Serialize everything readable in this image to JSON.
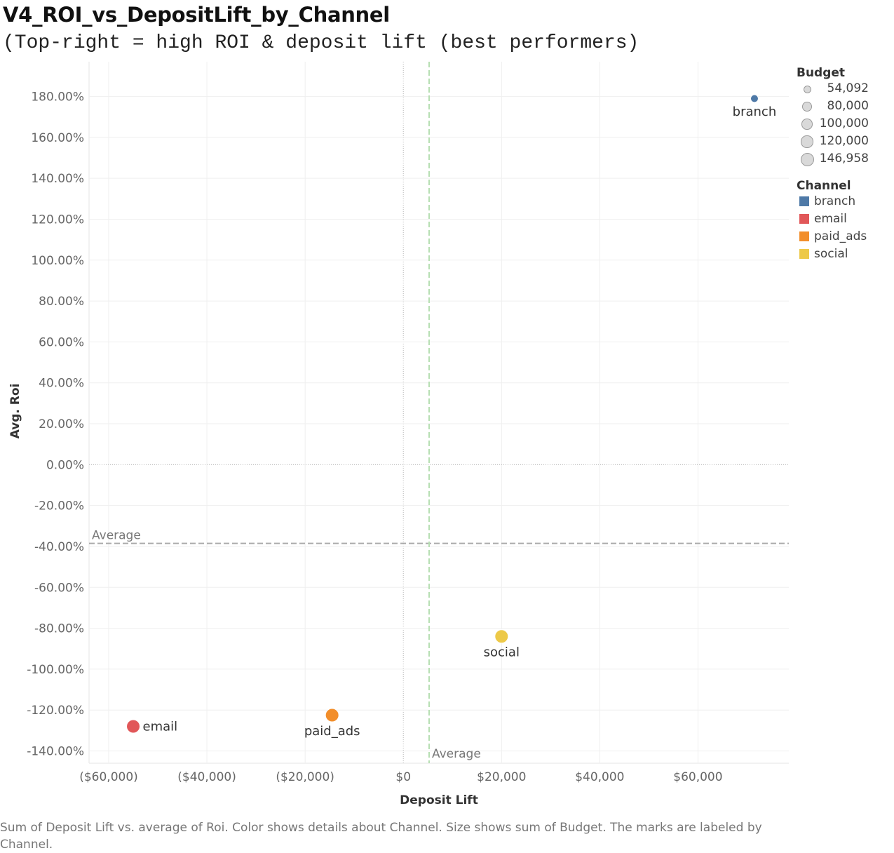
{
  "title": "V4_ROI_vs_DepositLift_by_Channel",
  "subtitle": "(Top-right = high ROI & deposit lift (best performers)",
  "caption": "Sum of Deposit Lift vs. average of Roi.  Color shows details about Channel.  Size shows sum of Budget.  The marks are labeled by Channel.",
  "chart_data": {
    "type": "scatter",
    "xlabel": "Deposit Lift",
    "ylabel": "Avg. Roi",
    "xlim": [
      -64000,
      78500
    ],
    "ylim": [
      -146,
      197
    ],
    "x_ticks": [
      -60000,
      -40000,
      -20000,
      0,
      20000,
      40000,
      60000
    ],
    "x_tick_labels": [
      "($60,000)",
      "($40,000)",
      "($20,000)",
      "$0",
      "$20,000",
      "$40,000",
      "$60,000"
    ],
    "y_ticks": [
      180,
      160,
      140,
      120,
      100,
      80,
      60,
      40,
      20,
      0,
      -20,
      -40,
      -60,
      -80,
      -100,
      -120,
      -140
    ],
    "y_tick_labels": [
      "180.00%",
      "160.00%",
      "140.00%",
      "120.00%",
      "100.00%",
      "80.00%",
      "60.00%",
      "40.00%",
      "20.00%",
      "0.00%",
      "-20.00%",
      "-40.00%",
      "-60.00%",
      "-80.00%",
      "-100.00%",
      "-120.00%",
      "-140.00%"
    ],
    "grid": true,
    "points": [
      {
        "channel": "branch",
        "x": 71500,
        "y": 179,
        "budget": 54092,
        "color": "#4e79a7"
      },
      {
        "channel": "email",
        "x": -55000,
        "y": -128,
        "budget": 146958,
        "color": "#e15759"
      },
      {
        "channel": "paid_ads",
        "x": -14500,
        "y": -122.5,
        "budget": 146958,
        "color": "#f28e2b"
      },
      {
        "channel": "social",
        "x": 20000,
        "y": -84,
        "budget": 146958,
        "color": "#edc948"
      }
    ],
    "reference_lines": [
      {
        "axis": "y",
        "value": -38.5,
        "label": "Average",
        "color": "#aaaaaa"
      },
      {
        "axis": "x",
        "value": 5250,
        "label": "Average",
        "color": "#b7dfb3"
      }
    ],
    "legend": {
      "placement": "right",
      "size_title": "Budget",
      "size_items": [
        {
          "label": "54,092",
          "value": 54092
        },
        {
          "label": "80,000",
          "value": 80000
        },
        {
          "label": "100,000",
          "value": 100000
        },
        {
          "label": "120,000",
          "value": 120000
        },
        {
          "label": "146,958",
          "value": 146958
        }
      ],
      "color_title": "Channel",
      "color_items": [
        {
          "label": "branch",
          "color": "#4e79a7"
        },
        {
          "label": "email",
          "color": "#e15759"
        },
        {
          "label": "paid_ads",
          "color": "#f28e2b"
        },
        {
          "label": "social",
          "color": "#edc948"
        }
      ]
    }
  }
}
